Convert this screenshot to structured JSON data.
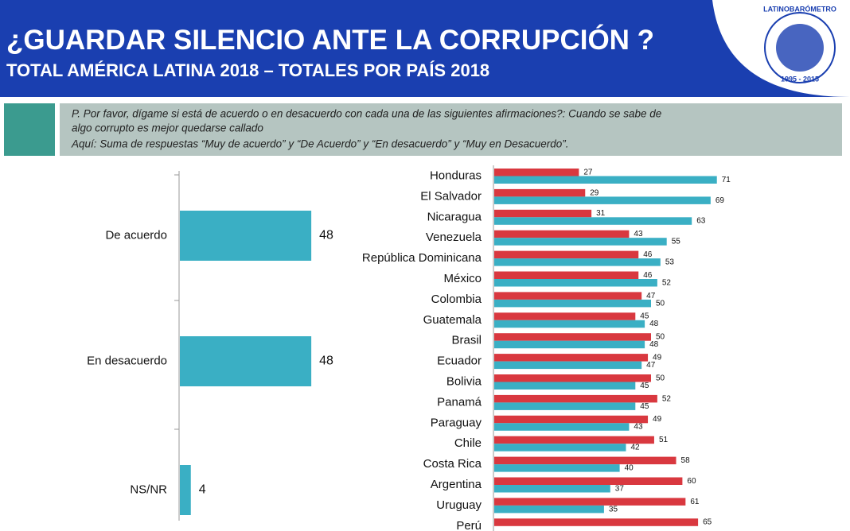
{
  "header": {
    "title": "¿GUARDAR SILENCIO ANTE LA CORRUPCIÓN ?",
    "subtitle": "TOTAL AMÉRICA LATINA  2018 – TOTALES POR PAÍS 2018",
    "logo": "LATINOBARÓMETRO",
    "logo_years": "1995 - 2015"
  },
  "question": [
    "P. Por favor, dígame si está de acuerdo o en desacuerdo con cada una de las siguientes afirmaciones?: Cuando se sabe de",
    "algo corrupto es mejor quedarse callado",
    "Aquí: Suma de respuestas “Muy de acuerdo” y “De Acuerdo” y “En desacuerdo” y “Muy en Desacuerdo”."
  ],
  "chart_data": [
    {
      "type": "hbar",
      "categories": [
        "De acuerdo",
        "En desacuerdo",
        "NS/NR"
      ],
      "values": [
        48,
        48,
        4
      ],
      "color": "#3aafc4"
    },
    {
      "type": "grouped-hbar",
      "categories": [
        "Honduras",
        "El Salvador",
        "Nicaragua",
        "Venezuela",
        "República Dominicana",
        "México",
        "Colombia",
        "Guatemala",
        "Brasil",
        "Ecuador",
        "Bolivia",
        "Panamá",
        "Paraguay",
        "Chile",
        "Costa Rica",
        "Argentina",
        "Uruguay",
        "Perú"
      ],
      "series": [
        {
          "color": "#d9383f",
          "values": [
            27,
            29,
            31,
            43,
            46,
            46,
            47,
            45,
            50,
            49,
            50,
            52,
            49,
            51,
            58,
            60,
            61,
            65
          ]
        },
        {
          "color": "#3aafc4",
          "values": [
            71,
            69,
            63,
            55,
            53,
            52,
            50,
            48,
            48,
            47,
            45,
            45,
            43,
            42,
            40,
            37,
            35,
            null
          ]
        }
      ]
    }
  ]
}
